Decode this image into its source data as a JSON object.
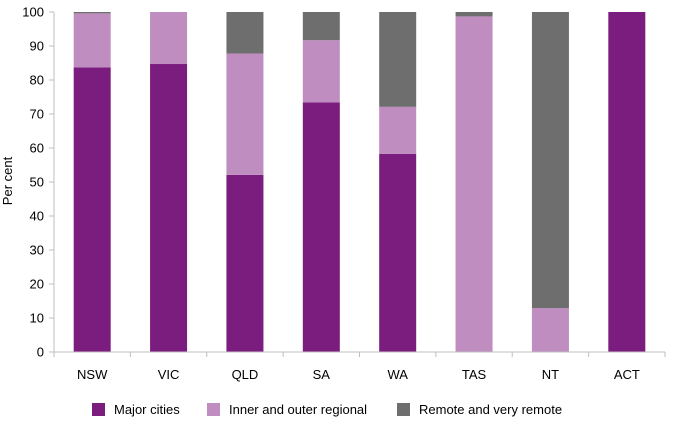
{
  "chart_data": {
    "type": "bar",
    "stacked": true,
    "categories": [
      "NSW",
      "VIC",
      "QLD",
      "SA",
      "WA",
      "TAS",
      "NT",
      "ACT"
    ],
    "series": [
      {
        "name": "Major cities",
        "color": "#7b1c7f",
        "values": [
          83.7,
          84.7,
          52.1,
          73.4,
          58.3,
          0,
          0,
          100
        ]
      },
      {
        "name": "Inner and outer regional",
        "color": "#bf8dc0",
        "values": [
          15.9,
          15.3,
          35.7,
          18.3,
          13.8,
          98.7,
          12.9,
          0
        ]
      },
      {
        "name": "Remote and very remote",
        "color": "#6e6e6e",
        "values": [
          0.4,
          0,
          12.2,
          8.3,
          27.9,
          1.3,
          87.1,
          0
        ]
      }
    ],
    "title": "",
    "xlabel": "",
    "ylabel": "Per cent",
    "ylim": [
      0,
      100
    ],
    "yticks": [
      "0",
      "10",
      "20",
      "30",
      "40",
      "50",
      "60",
      "70",
      "80",
      "90",
      "100"
    ],
    "grid": false,
    "legend": "bottom"
  }
}
